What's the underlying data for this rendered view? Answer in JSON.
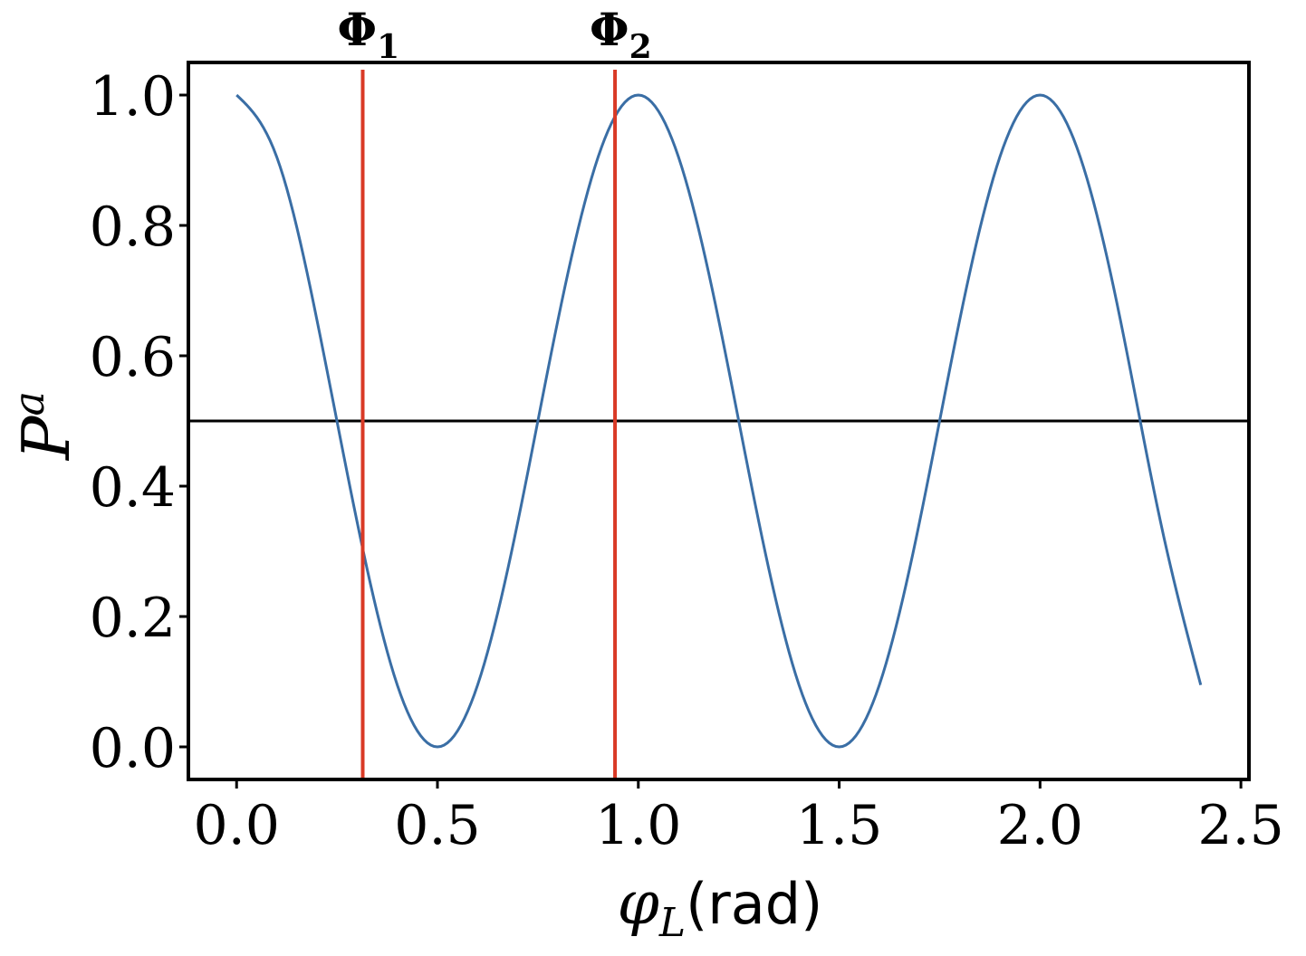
{
  "chart_data": {
    "type": "line",
    "title": "",
    "xlabel": {
      "symbol": "φ",
      "subscript": "L",
      "unit": "(rad)"
    },
    "ylabel": {
      "symbol": "P",
      "superscript": "a"
    },
    "xlim": [
      -0.12,
      2.52
    ],
    "ylim": [
      -0.05,
      1.05
    ],
    "xticks": [
      "0.0",
      "0.5",
      "1.0",
      "1.5",
      "2.0",
      "2.5"
    ],
    "yticks": [
      "0.0",
      "0.2",
      "0.4",
      "0.6",
      "0.8",
      "1.0"
    ],
    "grid": false,
    "series": [
      {
        "color": "#3a6ea5",
        "x": [
          0.0,
          0.1,
          0.2,
          0.3,
          0.4,
          0.5,
          0.6,
          0.7,
          0.8,
          0.9,
          1.0,
          1.1,
          1.2,
          1.3,
          1.4,
          1.5,
          1.6,
          1.7,
          1.8,
          1.9,
          2.0,
          2.1,
          2.2,
          2.3,
          2.4
        ],
        "y": [
          1.0,
          0.905,
          0.655,
          0.345,
          0.095,
          0.0,
          0.095,
          0.345,
          0.655,
          0.905,
          1.0,
          0.905,
          0.655,
          0.345,
          0.095,
          0.0,
          0.095,
          0.345,
          0.655,
          0.905,
          1.0,
          0.905,
          0.655,
          0.345,
          0.095
        ]
      }
    ],
    "hline": {
      "y": 0.5,
      "color": "#000000"
    },
    "vlines": [
      {
        "x": 0.314,
        "label": "Φ",
        "subscript": "1",
        "color": "#d93a26"
      },
      {
        "x": 0.942,
        "label": "Φ",
        "subscript": "2",
        "color": "#d93a26"
      }
    ]
  }
}
